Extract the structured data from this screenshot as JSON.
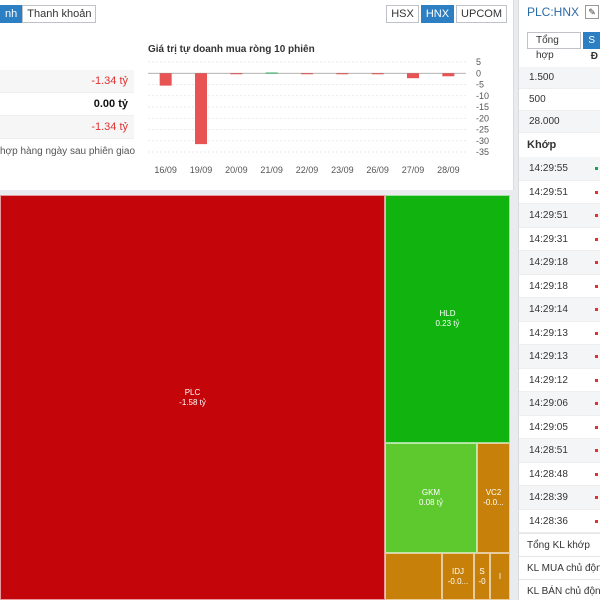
{
  "tabs_left": [
    "nh",
    "Thanh khoản"
  ],
  "tabs_exchange": [
    "HSX",
    "HNX",
    "UPCOM"
  ],
  "summary": [
    "-1.34 tỷ",
    "0.00 tỷ",
    "-1.34 tỷ"
  ],
  "note": "hợp hàng ngày sau phiên giao",
  "chart_data": {
    "type": "bar",
    "title": "Giá trị tự doanh mua ròng 10 phiên",
    "categories": [
      "16/09",
      "19/09",
      "20/09",
      "21/09",
      "22/09",
      "23/09",
      "26/09",
      "27/09",
      "28/09"
    ],
    "values": [
      -5.5,
      -31.5,
      -0.3,
      0.3,
      -0.2,
      -0.1,
      -0.4,
      -2.2,
      -1.34
    ],
    "ylim": [
      -35,
      5
    ],
    "yticks": [
      "5",
      "0",
      "-5",
      "-10",
      "-15",
      "-20",
      "-25",
      "-30",
      "-35"
    ],
    "colors": {
      "negative": "#e85454",
      "positive": "#19a34a"
    }
  },
  "treemap": [
    {
      "label": "PLC",
      "value": "-1.58 tỷ",
      "color": "#c4060a"
    },
    {
      "label": "HLD",
      "value": "0.23 tỷ",
      "color": "#11b40f"
    },
    {
      "label": "GKM",
      "value": "0.08 tỷ",
      "color": "#5ec92e"
    },
    {
      "label": "VC2",
      "value": "-0.0...",
      "color": "#c7810b"
    },
    {
      "label": "IDJ",
      "value": "-0.0...",
      "color": "#c7810b"
    },
    {
      "label": "S",
      "value": "-0",
      "color": "#c7810b"
    },
    {
      "label": "I",
      "value": "",
      "color": "#c7810b"
    }
  ],
  "right": {
    "symbol": "PLC:HNX",
    "tabs": [
      "Tổng hợp",
      "S"
    ],
    "sub_header": "Đ",
    "prices": [
      "1.500",
      "500",
      "28.000"
    ],
    "section": "Khớp",
    "times": [
      "14:29:55",
      "14:29:51",
      "14:29:51",
      "14:29:31",
      "14:29:18",
      "14:29:18",
      "14:29:14",
      "14:29:13",
      "14:29:13",
      "14:29:12",
      "14:29:06",
      "14:29:05",
      "14:28:51",
      "14:28:48",
      "14:28:39",
      "14:28:36"
    ],
    "footer": [
      "Tổng KL khớp",
      "KL MUA chủ động",
      "KL BÁN chủ động"
    ]
  }
}
